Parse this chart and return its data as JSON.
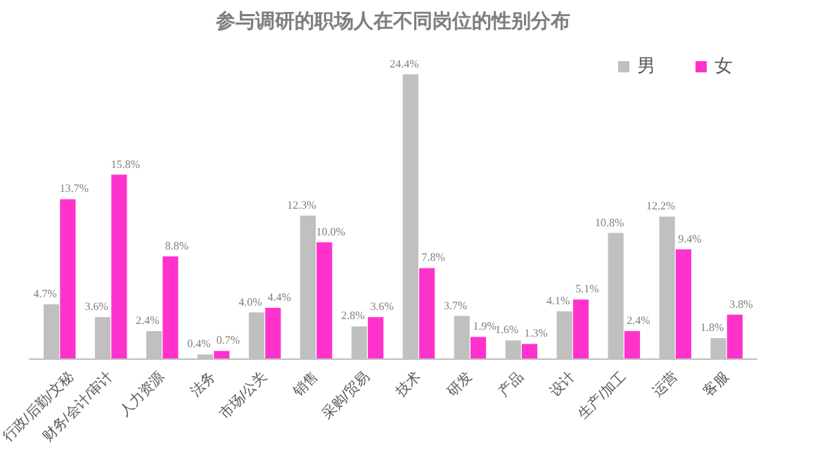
{
  "chart_data": {
    "type": "bar",
    "title": "参与调研的职场人在不同岗位的性别分布",
    "categories": [
      "行政/后勤/文秘",
      "财务/会计/审计",
      "人力资源",
      "法务",
      "市场/公关",
      "销售",
      "采购/贸易",
      "技术",
      "研发",
      "产品",
      "设计",
      "生产/加工",
      "运营",
      "客服"
    ],
    "series": [
      {
        "name": "男",
        "color": "#c0c0c0",
        "values": [
          4.7,
          3.6,
          2.4,
          0.4,
          4.0,
          12.3,
          2.8,
          24.4,
          3.7,
          1.6,
          4.1,
          10.8,
          12.2,
          1.8
        ],
        "value_labels": [
          "4.7%",
          "3.6%",
          "2.4%",
          "0.4%",
          "4.0%",
          "12.3%",
          "2.8%",
          "24.4%",
          "3.7%",
          "1.6%",
          "4.1%",
          "10.8%",
          "12.2%",
          "1.8%"
        ]
      },
      {
        "name": "女",
        "color": "#ff33cc",
        "values": [
          13.7,
          15.8,
          8.8,
          0.7,
          4.4,
          10.0,
          3.6,
          7.8,
          1.9,
          1.3,
          5.1,
          2.4,
          9.4,
          3.8
        ],
        "value_labels": [
          "13.7%",
          "15.8%",
          "8.8%",
          "0.7%",
          "4.4%",
          "10.0%",
          "3.6%",
          "7.8%",
          "1.9%",
          "1.3%",
          "5.1%",
          "2.4%",
          "9.4%",
          "3.8%"
        ]
      }
    ],
    "legend": "top right",
    "grid": false
  }
}
